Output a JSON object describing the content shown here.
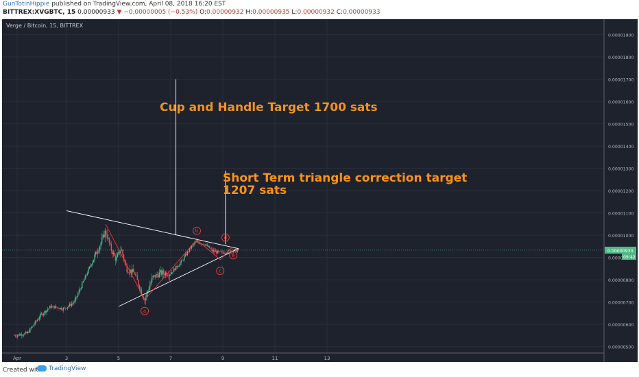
{
  "header": {
    "author": "GunTotinHippie",
    "published": "published on TradingView.com, April 08, 2018 16:20 EST",
    "symbol": "BITTREX:XVGBTC, 15",
    "last": "0.00000933",
    "change": "−0.00000005 (−0.53%)",
    "ohlc": {
      "o_label": "O:",
      "o": "0.00000932",
      "h_label": "H:",
      "h": "0.00000935",
      "l_label": "L:",
      "l": "0.00000932",
      "c_label": "C:",
      "c": "0.00000933"
    }
  },
  "chart_data": {
    "type": "candlestick",
    "legend": "Verge / Bitcoin, 15, BITTREX",
    "y_ticks": [
      "0.00001900",
      "0.00001800",
      "0.00001700",
      "0.00001600",
      "0.00001500",
      "0.00001400",
      "0.00001300",
      "0.00001200",
      "0.00001100",
      "0.00001000",
      "0.00000900",
      "0.00000800",
      "0.00000700",
      "0.00000600",
      "0.00000500"
    ],
    "ylim": [
      4.5e-06,
      1.95e-05
    ],
    "x_ticks": [
      "Apr",
      "3",
      "5",
      "7",
      "9",
      "11",
      "13"
    ],
    "price_line": 9.33e-06,
    "price_tag": "0.00000933",
    "countdown_tag": "09:42",
    "path": [
      [
        0,
        5.5
      ],
      [
        0.5,
        5.6
      ],
      [
        1.0,
        6.4
      ],
      [
        1.4,
        6.8
      ],
      [
        1.9,
        6.7
      ],
      [
        2.3,
        7.0
      ],
      [
        2.9,
        8.6
      ],
      [
        3.3,
        9.6
      ],
      [
        3.5,
        10.2
      ],
      [
        3.7,
        9.4
      ],
      [
        3.9,
        8.9
      ],
      [
        4.1,
        9.4
      ],
      [
        4.3,
        8.5
      ],
      [
        4.6,
        8.3
      ],
      [
        5.0,
        7.1
      ],
      [
        5.3,
        8.1
      ],
      [
        5.6,
        8.3
      ],
      [
        6.0,
        8.3
      ],
      [
        6.4,
        8.8
      ],
      [
        6.8,
        9.5
      ],
      [
        7.0,
        9.7
      ],
      [
        7.3,
        9.6
      ],
      [
        7.6,
        9.3
      ],
      [
        7.9,
        9.2
      ],
      [
        8.3,
        9.3
      ],
      [
        8.6,
        9.33
      ]
    ],
    "annotations": {
      "cup_text": "Cup and Handle Target 1700 sats",
      "tri_line1": "Short Term triangle correction target",
      "tri_line2": "1207 sats",
      "wave_labels": [
        "a",
        "b",
        "c",
        "d",
        "e"
      ]
    },
    "colors": {
      "bg": "#1e222d",
      "up": "#53b987",
      "down": "#eb4d5c",
      "annotation": "#f7931a",
      "lines": "#ffffff",
      "wave": "#ff3b3b",
      "price_tag": "#53b987"
    }
  },
  "footer": {
    "created": "Created with",
    "brand": "TradingView"
  }
}
